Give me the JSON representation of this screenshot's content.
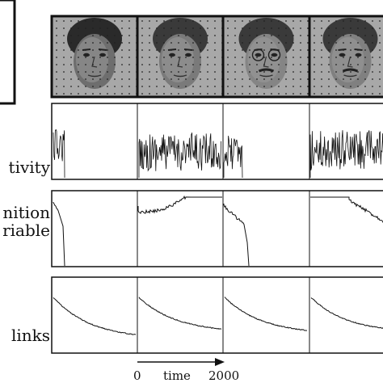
{
  "rows": [
    {
      "id": "activity",
      "label": "tivity"
    },
    {
      "id": "recognition",
      "label_line1": "nition",
      "label_line2": "riable"
    },
    {
      "id": "links",
      "label": "links"
    }
  ],
  "faces": [
    {
      "name": "face-1",
      "tone": "#6e6e6e"
    },
    {
      "name": "face-2",
      "tone": "#7a7a7a"
    },
    {
      "name": "face-3",
      "tone": "#858585"
    },
    {
      "name": "face-4",
      "tone": "#808080"
    }
  ],
  "time_axis": {
    "start": "0",
    "label": "time",
    "end": "2000"
  },
  "colors": {
    "line": "#111111",
    "background": "#ffffff",
    "dots": "#222222"
  }
}
